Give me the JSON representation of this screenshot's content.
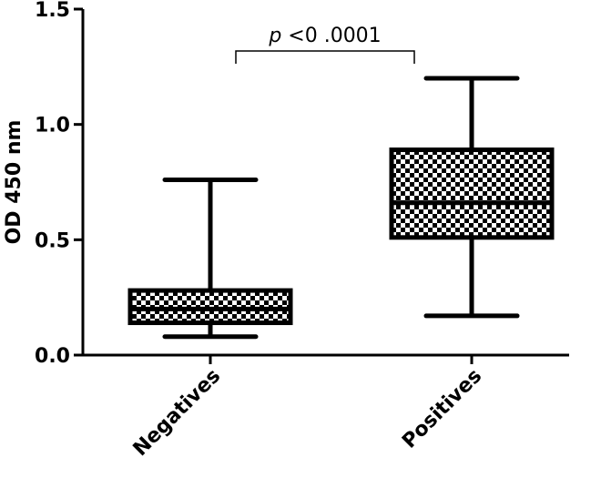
{
  "chart_data": {
    "type": "box",
    "ylabel": "OD 450 nm",
    "ylim": [
      0.0,
      1.5
    ],
    "yticks": [
      "0.0",
      "0.5",
      "1.0",
      "1.5"
    ],
    "categories": [
      "Negatives",
      "Positives"
    ],
    "boxes": [
      {
        "category": "Negatives",
        "min": 0.08,
        "q1": 0.14,
        "median": 0.2,
        "q3": 0.28,
        "max": 0.76
      },
      {
        "category": "Positives",
        "min": 0.17,
        "q1": 0.51,
        "median": 0.66,
        "q3": 0.89,
        "max": 1.2
      }
    ],
    "annotation": {
      "p_symbol": "p",
      "text": "<0 .0001"
    },
    "fill_pattern": "checkerboard",
    "grid": false
  }
}
